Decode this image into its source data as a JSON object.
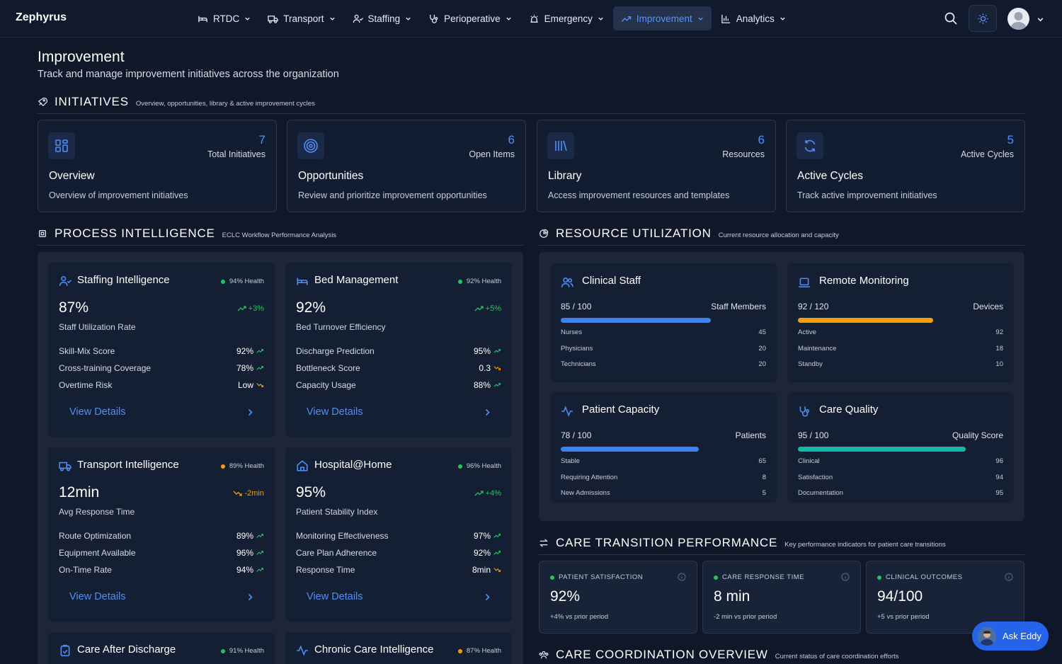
{
  "brand": "Zephyrus",
  "nav": {
    "items": [
      {
        "label": "RTDC",
        "icon": "bed-icon"
      },
      {
        "label": "Transport",
        "icon": "truck-icon"
      },
      {
        "label": "Staffing",
        "icon": "users-icon"
      },
      {
        "label": "Perioperative",
        "icon": "stethoscope-icon"
      },
      {
        "label": "Emergency",
        "icon": "siren-icon"
      },
      {
        "label": "Improvement",
        "icon": "trending-up-icon",
        "active": true
      },
      {
        "label": "Analytics",
        "icon": "bar-chart-icon"
      }
    ]
  },
  "header": {
    "title": "Improvement",
    "subtitle": "Track and manage improvement initiatives across the organization"
  },
  "initiatives": {
    "title": "INITIATIVES",
    "subtitle": "Overview, opportunities, library & active improvement cycles",
    "cards": [
      {
        "count": "7",
        "count_label": "Total Initiatives",
        "title": "Overview",
        "desc": "Overview of improvement initiatives",
        "icon": "grid-icon"
      },
      {
        "count": "6",
        "count_label": "Open Items",
        "title": "Opportunities",
        "desc": "Review and prioritize improvement opportunities",
        "icon": "target-icon"
      },
      {
        "count": "6",
        "count_label": "Resources",
        "title": "Library",
        "desc": "Access improvement resources and templates",
        "icon": "library-icon"
      },
      {
        "count": "5",
        "count_label": "Active Cycles",
        "title": "Active Cycles",
        "desc": "Track active improvement initiatives",
        "icon": "refresh-icon"
      }
    ]
  },
  "process": {
    "title": "PROCESS INTELLIGENCE",
    "subtitle": "ECLC Workflow Performance Analysis",
    "view_details": "View Details",
    "cards": [
      {
        "title": "Staffing Intelligence",
        "health": "94% Health",
        "health_color": "#22c55e",
        "value": "87%",
        "trend": "+3%",
        "trend_dir": "up",
        "value_label": "Staff Utilization Rate",
        "metrics": [
          {
            "label": "Skill-Mix Score",
            "value": "92%",
            "dir": "up"
          },
          {
            "label": "Cross-training Coverage",
            "value": "78%",
            "dir": "up"
          },
          {
            "label": "Overtime Risk",
            "value": "Low",
            "dir": "down"
          }
        ]
      },
      {
        "title": "Bed Management",
        "health": "92% Health",
        "health_color": "#22c55e",
        "value": "92%",
        "trend": "+5%",
        "trend_dir": "up",
        "value_label": "Bed Turnover Efficiency",
        "metrics": [
          {
            "label": "Discharge Prediction",
            "value": "95%",
            "dir": "up"
          },
          {
            "label": "Bottleneck Score",
            "value": "0.3",
            "dir": "down"
          },
          {
            "label": "Capacity Usage",
            "value": "88%",
            "dir": "up"
          }
        ]
      },
      {
        "title": "Transport Intelligence",
        "health": "89% Health",
        "health_color": "#f59e0b",
        "value": "12min",
        "trend": "-2min",
        "trend_dir": "down",
        "value_label": "Avg Response Time",
        "metrics": [
          {
            "label": "Route Optimization",
            "value": "89%",
            "dir": "up"
          },
          {
            "label": "Equipment Available",
            "value": "96%",
            "dir": "up"
          },
          {
            "label": "On-Time Rate",
            "value": "94%",
            "dir": "up"
          }
        ]
      },
      {
        "title": "Hospital@Home",
        "health": "96% Health",
        "health_color": "#22c55e",
        "value": "95%",
        "trend": "+4%",
        "trend_dir": "up",
        "value_label": "Patient Stability Index",
        "metrics": [
          {
            "label": "Monitoring Effectiveness",
            "value": "97%",
            "dir": "up"
          },
          {
            "label": "Care Plan Adherence",
            "value": "92%",
            "dir": "up"
          },
          {
            "label": "Response Time",
            "value": "8min",
            "dir": "down"
          }
        ]
      },
      {
        "title": "Care After Discharge",
        "health": "91% Health",
        "health_color": "#22c55e"
      },
      {
        "title": "Chronic Care Intelligence",
        "health": "87% Health",
        "health_color": "#f59e0b"
      }
    ]
  },
  "resources": {
    "title": "RESOURCE UTILIZATION",
    "subtitle": "Current resource allocation and capacity",
    "cards": [
      {
        "title": "Clinical Staff",
        "ratio": "85 / 100",
        "unit": "Staff Members",
        "fill": 0.85,
        "color": "#3b82f6",
        "rows": [
          {
            "label": "Nurses",
            "value": "45"
          },
          {
            "label": "Physicians",
            "value": "20"
          },
          {
            "label": "Technicians",
            "value": "20"
          }
        ]
      },
      {
        "title": "Remote Monitoring",
        "ratio": "92 / 120",
        "unit": "Devices",
        "fill": 0.767,
        "color": "#f59e0b",
        "rows": [
          {
            "label": "Active",
            "value": "92"
          },
          {
            "label": "Maintenance",
            "value": "18"
          },
          {
            "label": "Standby",
            "value": "10"
          }
        ]
      },
      {
        "title": "Patient Capacity",
        "ratio": "78 / 100",
        "unit": "Patients",
        "fill": 0.78,
        "color": "#3b82f6",
        "rows": [
          {
            "label": "Stable",
            "value": "65"
          },
          {
            "label": "Requiring Attention",
            "value": "8"
          },
          {
            "label": "New Admissions",
            "value": "5"
          }
        ]
      },
      {
        "title": "Care Quality",
        "ratio": "95 / 100",
        "unit": "Quality Score",
        "fill": 0.95,
        "color": "#14b8a6",
        "rows": [
          {
            "label": "Clinical",
            "value": "96"
          },
          {
            "label": "Satisfaction",
            "value": "94"
          },
          {
            "label": "Documentation",
            "value": "95"
          }
        ]
      }
    ]
  },
  "transition": {
    "title": "CARE TRANSITION PERFORMANCE",
    "subtitle": "Key performance indicators for patient care transitions",
    "kpis": [
      {
        "label": "PATIENT SATISFACTION",
        "value": "92%",
        "sub": "+4% vs prior period"
      },
      {
        "label": "CARE RESPONSE TIME",
        "value": "8 min",
        "sub": "-2 min vs prior period"
      },
      {
        "label": "CLINICAL OUTCOMES",
        "value": "94/100",
        "sub": "+5 vs prior period"
      }
    ]
  },
  "coordination": {
    "title": "CARE COORDINATION OVERVIEW",
    "subtitle": "Current status of care coordination efforts"
  },
  "ask": {
    "label": "Ask Eddy"
  }
}
